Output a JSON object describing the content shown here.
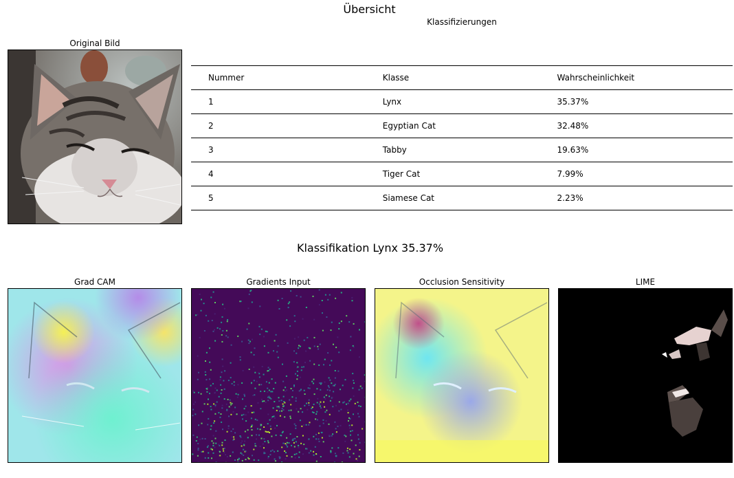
{
  "figure": {
    "title": "Übersicht",
    "table_title": "Klassifizierungen",
    "original_title": "Original Bild",
    "section_title": "Klassifikation Lynx 35.37%"
  },
  "table": {
    "headers": [
      "Nummer",
      "Klasse",
      "Wahrscheinlichkeit"
    ],
    "rows": [
      [
        "1",
        "Lynx",
        "35.37%"
      ],
      [
        "2",
        "Egyptian Cat",
        "32.48%"
      ],
      [
        "3",
        "Tabby",
        "19.63%"
      ],
      [
        "4",
        "Tiger Cat",
        "7.99%"
      ],
      [
        "5",
        "Siamese Cat",
        "2.23%"
      ]
    ]
  },
  "panels": [
    {
      "title": "Grad CAM"
    },
    {
      "title": "Gradients Input"
    },
    {
      "title": "Occlusion Sensitivity"
    },
    {
      "title": "LIME"
    }
  ]
}
